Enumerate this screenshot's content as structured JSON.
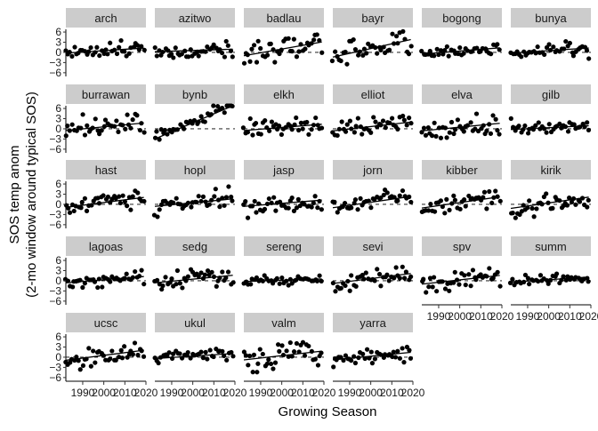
{
  "chart_data": {
    "type": "scatter",
    "title": "",
    "xlabel": "Growing Season",
    "ylabel_line1": "SOS temp anom",
    "ylabel_line2": "(2-mo window around typical SOS)",
    "xlim": [
      1982,
      2020
    ],
    "ylim": [
      -6.3,
      6.8
    ],
    "x_ticks": [
      1990,
      2000,
      2010,
      2020
    ],
    "y_ticks": [
      -6,
      -3,
      0,
      3,
      6
    ],
    "zero_line": "dashed",
    "trend_line": "solid",
    "grid": false,
    "facets": [
      {
        "label": "arch",
        "intercept": -0.2,
        "slope": 0.04,
        "noise": 1.0
      },
      {
        "label": "azitwo",
        "intercept": 0.2,
        "slope": 0.02,
        "noise": 1.0
      },
      {
        "label": "badlau",
        "intercept": -1.0,
        "slope": 0.11,
        "noise": 2.1
      },
      {
        "label": "bayr",
        "intercept": -1.4,
        "slope": 0.14,
        "noise": 1.8
      },
      {
        "label": "bogong",
        "intercept": -0.5,
        "slope": 0.05,
        "noise": 0.8
      },
      {
        "label": "bunya",
        "intercept": -0.2,
        "slope": 0.04,
        "noise": 1.1
      },
      {
        "label": "burrawan",
        "intercept": -0.5,
        "slope": 0.06,
        "noise": 1.7
      },
      {
        "label": "bynb",
        "intercept": -3.0,
        "slope": 0.3,
        "noise": 1.2
      },
      {
        "label": "elkh",
        "intercept": -0.5,
        "slope": 0.05,
        "noise": 1.4
      },
      {
        "label": "elliot",
        "intercept": -0.6,
        "slope": 0.07,
        "noise": 1.2
      },
      {
        "label": "elva",
        "intercept": -0.6,
        "slope": 0.06,
        "noise": 1.8
      },
      {
        "label": "gilb",
        "intercept": -0.2,
        "slope": 0.03,
        "noise": 1.0
      },
      {
        "label": "hast",
        "intercept": -0.9,
        "slope": 0.08,
        "noise": 1.3
      },
      {
        "label": "hopl",
        "intercept": -0.6,
        "slope": 0.06,
        "noise": 1.3
      },
      {
        "label": "jasp",
        "intercept": -0.6,
        "slope": 0.05,
        "noise": 1.4
      },
      {
        "label": "jorn",
        "intercept": -1.0,
        "slope": 0.09,
        "noise": 1.2
      },
      {
        "label": "kibber",
        "intercept": -1.1,
        "slope": 0.09,
        "noise": 1.3
      },
      {
        "label": "kirik",
        "intercept": -1.2,
        "slope": 0.09,
        "noise": 1.6
      },
      {
        "label": "lagoas",
        "intercept": -0.6,
        "slope": 0.05,
        "noise": 1.0
      },
      {
        "label": "sedg",
        "intercept": -0.6,
        "slope": 0.06,
        "noise": 1.4
      },
      {
        "label": "sereng",
        "intercept": -0.2,
        "slope": 0.02,
        "noise": 0.6
      },
      {
        "label": "sevi",
        "intercept": -0.8,
        "slope": 0.08,
        "noise": 1.4
      },
      {
        "label": "spv",
        "intercept": -1.0,
        "slope": 0.07,
        "noise": 1.2
      },
      {
        "label": "summ",
        "intercept": -0.4,
        "slope": 0.04,
        "noise": 0.8
      },
      {
        "label": "ucsc",
        "intercept": -0.9,
        "slope": 0.08,
        "noise": 1.6
      },
      {
        "label": "ukul",
        "intercept": -0.4,
        "slope": 0.04,
        "noise": 1.0
      },
      {
        "label": "valm",
        "intercept": -0.8,
        "slope": 0.07,
        "noise": 2.2
      },
      {
        "label": "yarra",
        "intercept": -0.8,
        "slope": 0.06,
        "noise": 1.0
      }
    ]
  }
}
